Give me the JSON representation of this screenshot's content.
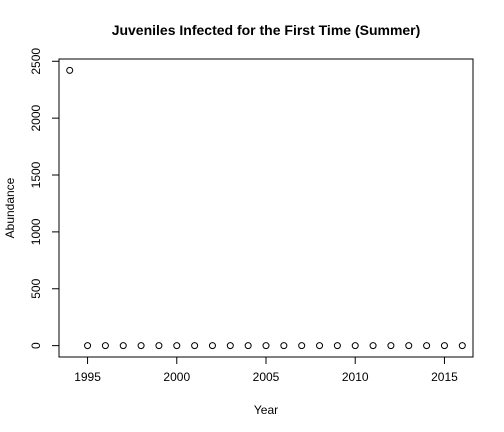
{
  "chart_data": {
    "type": "scatter",
    "title": "Juveniles Infected for the First Time (Summer)",
    "xlabel": "Year",
    "ylabel": "Abundance",
    "xlim": [
      1993.4,
      2016.6
    ],
    "ylim": [
      -100,
      2520
    ],
    "xticks": [
      1995,
      2000,
      2005,
      2010,
      2015
    ],
    "yticks": [
      0,
      500,
      1000,
      1500,
      2000,
      2500
    ],
    "grid": false,
    "legend": "none",
    "series": [
      {
        "x": [
          1994,
          1995,
          1996,
          1997,
          1998,
          1999,
          2000,
          2001,
          2002,
          2003,
          2004,
          2005,
          2006,
          2007,
          2008,
          2009,
          2010,
          2011,
          2012,
          2013,
          2014,
          2015,
          2016
        ],
        "y": [
          2420,
          0,
          0,
          0,
          0,
          0,
          0,
          0,
          0,
          0,
          0,
          0,
          0,
          0,
          0,
          0,
          0,
          0,
          0,
          0,
          0,
          0,
          0
        ]
      }
    ]
  }
}
